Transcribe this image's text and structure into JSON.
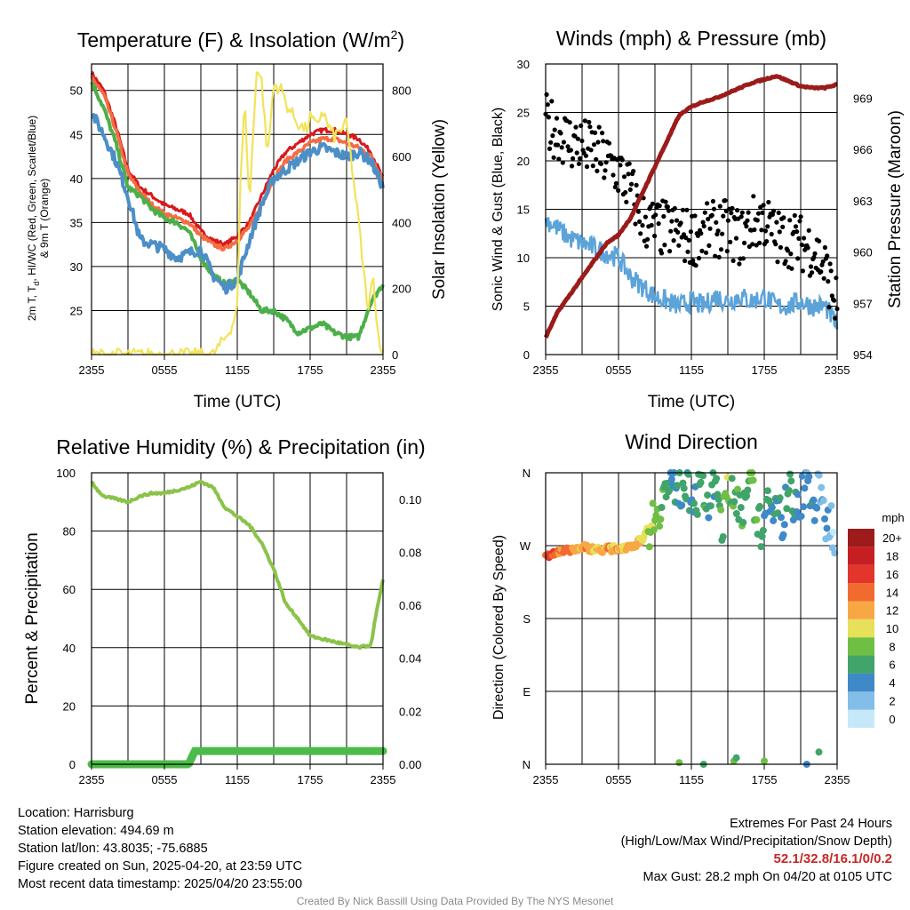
{
  "chart_data": [
    {
      "type": "line",
      "title": "Temperature (F) & Insolation (W/m²)",
      "xlabel": "Time (UTC)",
      "ylabel": "2m T, Td, HI/WC (Red, Green, Scarlet/Blue) & 9m T (Orange)",
      "ylabel_parts": [
        "2m T, T",
        "d",
        ", HI/WC (Red, Green, Scarlet/Blue)",
        "& 9m T (Orange)"
      ],
      "y2label": "Solar Insolation (Yellow)",
      "x_ticks": [
        "2355",
        "0555",
        "1155",
        "1755",
        "2355"
      ],
      "x_range": [
        0,
        24
      ],
      "ylim": [
        20,
        53
      ],
      "y_ticks": [
        25,
        30,
        35,
        40,
        45,
        50
      ],
      "y2lim": [
        0,
        880
      ],
      "y2_ticks": [
        0,
        200,
        400,
        600,
        800
      ],
      "series": [
        {
          "color": "#d7191c",
          "axis": "left",
          "x": [
            0,
            1,
            2,
            3,
            4,
            5,
            6,
            7,
            8,
            9,
            10,
            11,
            12,
            13,
            14,
            15,
            16,
            17,
            18,
            19,
            20,
            21,
            22,
            23,
            24
          ],
          "values": [
            52,
            50,
            46,
            41,
            39,
            38,
            37,
            36.5,
            36,
            34,
            33,
            32.5,
            33.5,
            35,
            38,
            41,
            43,
            44,
            45,
            45.5,
            45.5,
            45,
            44.5,
            43,
            40
          ]
        },
        {
          "color": "#f46d43",
          "axis": "left",
          "x": [
            0,
            1,
            2,
            3,
            4,
            5,
            6,
            7,
            8,
            9,
            10,
            11,
            12,
            13,
            14,
            15,
            16,
            17,
            18,
            19,
            20,
            21,
            22,
            23,
            24
          ],
          "values": [
            51.5,
            49.5,
            45.5,
            40.5,
            38.5,
            37,
            36,
            35.5,
            35,
            33.5,
            32.5,
            32,
            33,
            34.5,
            37,
            40,
            42,
            43,
            44,
            44.5,
            44.5,
            44,
            43.5,
            42.5,
            40
          ]
        },
        {
          "color": "#4daf4a",
          "axis": "left",
          "x": [
            0,
            1,
            2,
            3,
            4,
            5,
            6,
            7,
            8,
            9,
            10,
            11,
            12,
            13,
            14,
            15,
            16,
            17,
            18,
            19,
            20,
            21,
            22,
            23,
            24
          ],
          "values": [
            51,
            48,
            44,
            39,
            38,
            36.5,
            35.5,
            35,
            34,
            31,
            29,
            28,
            28.5,
            27,
            25,
            25,
            24,
            22.5,
            23,
            23.5,
            22.5,
            22,
            22,
            26,
            28
          ]
        },
        {
          "color": "#4c8fc7",
          "axis": "left",
          "x": [
            0,
            1,
            2,
            3,
            4,
            5,
            6,
            7,
            8,
            9,
            10,
            11,
            12,
            13,
            14,
            15,
            16,
            17,
            18,
            19,
            20,
            21,
            22,
            23,
            24
          ],
          "values": [
            47.5,
            45,
            42,
            38,
            33,
            32.5,
            32,
            31,
            31.5,
            32,
            29,
            27.5,
            28.5,
            33,
            37,
            40,
            41,
            42,
            43,
            43.5,
            43,
            42.5,
            43,
            42,
            39
          ]
        },
        {
          "color": "#f2e35a",
          "axis": "right",
          "x": [
            0,
            8,
            9,
            10,
            11,
            11.6,
            12,
            12.3,
            12.6,
            13,
            13.6,
            14,
            14.5,
            15,
            15.7,
            16,
            16.5,
            17,
            17.3,
            17.7,
            18,
            18.5,
            19,
            19.5,
            20,
            21,
            21.5,
            22,
            22.4,
            22.8,
            23.2,
            23.5,
            24
          ],
          "values": [
            0,
            0,
            0,
            0,
            50,
            90,
            150,
            560,
            780,
            450,
            870,
            830,
            600,
            820,
            800,
            760,
            730,
            700,
            690,
            680,
            720,
            690,
            740,
            690,
            660,
            700,
            550,
            400,
            250,
            130,
            250,
            80,
            0
          ]
        }
      ]
    },
    {
      "type": "scatter",
      "title": "Winds (mph) & Pressure (mb)",
      "xlabel": "Time (UTC)",
      "ylabel": "Sonic Wind & Gust (Blue, Black)",
      "y2label": "Station Pressure (Maroon)",
      "x_ticks": [
        "2355",
        "0555",
        "1155",
        "1755",
        "2355"
      ],
      "x_range": [
        0,
        24
      ],
      "ylim": [
        0,
        30
      ],
      "y_ticks": [
        0,
        5,
        10,
        15,
        20,
        25,
        30
      ],
      "y2lim": [
        954,
        971
      ],
      "y2_ticks": [
        954,
        957,
        960,
        963,
        966,
        969
      ],
      "series": [
        {
          "color": "#5ba3d9",
          "type": "line",
          "axis": "left",
          "x": [
            0,
            1,
            2,
            3,
            4,
            5,
            6,
            7,
            8,
            9,
            10,
            11,
            12,
            13,
            14,
            15,
            16,
            17,
            18,
            19,
            20,
            21,
            22,
            23,
            24
          ],
          "values": [
            14,
            13,
            12,
            11.5,
            11,
            10.5,
            10,
            8,
            7,
            6,
            5.5,
            5,
            5.5,
            5,
            6,
            5.5,
            6,
            5.5,
            6,
            5,
            5,
            5.5,
            5,
            5,
            3
          ]
        },
        {
          "color": "#000000",
          "type": "scatter",
          "axis": "left",
          "x": [
            0,
            1,
            2,
            3,
            4,
            5,
            6,
            7,
            8,
            9,
            10,
            11,
            12,
            13,
            14,
            15,
            16,
            17,
            18,
            19,
            20,
            21,
            22,
            23,
            24
          ],
          "values": [
            24,
            23,
            22,
            21.5,
            21,
            20,
            19,
            17,
            14,
            13,
            13,
            12.5,
            12,
            12.5,
            13,
            13,
            12,
            13.5,
            14,
            12,
            12,
            11.5,
            11,
            9,
            5
          ]
        },
        {
          "color": "#9b1b1b",
          "type": "line",
          "axis": "right",
          "x": [
            0,
            1,
            2,
            3,
            4,
            5,
            6,
            7,
            8,
            9,
            10,
            11,
            12,
            13,
            14,
            15,
            16,
            17,
            18,
            19,
            20,
            21,
            22,
            23,
            24
          ],
          "values": [
            955,
            956.5,
            957.5,
            958.5,
            959.5,
            960.5,
            961,
            962,
            963.5,
            965,
            966.5,
            968,
            968.5,
            968.8,
            969,
            969.3,
            969.6,
            969.9,
            970.1,
            970.3,
            970.0,
            969.7,
            969.6,
            969.6,
            969.8
          ]
        }
      ]
    },
    {
      "type": "line",
      "title": "Relative Humidity (%) & Precipitation (in)",
      "xlabel": "",
      "ylabel": "Percent & Precipitation",
      "x_ticks": [
        "2355",
        "0555",
        "1155",
        "1755",
        "2355"
      ],
      "x_range": [
        0,
        24
      ],
      "ylim": [
        0,
        100
      ],
      "y_ticks": [
        0,
        20,
        40,
        60,
        80,
        100
      ],
      "y2lim": [
        0,
        0.11
      ],
      "y2_ticks": [
        "0.00",
        "0.02",
        "0.04",
        "0.06",
        "0.08",
        "0.10"
      ],
      "series": [
        {
          "color": "#8bc34a",
          "axis": "left",
          "x": [
            0,
            0.5,
            1,
            2,
            3,
            4,
            5,
            6,
            7,
            8,
            9,
            10,
            11,
            12,
            13,
            14,
            15,
            16,
            17,
            18,
            19,
            20,
            21,
            22,
            23,
            23.5,
            24
          ],
          "values": [
            97,
            94,
            92,
            91,
            90,
            92,
            93,
            93,
            94,
            95,
            97,
            95,
            88,
            85,
            82,
            76,
            67,
            55,
            50,
            44,
            43,
            42,
            41,
            40,
            41,
            53,
            63
          ]
        },
        {
          "color": "#4dbb4a",
          "axis": "right",
          "x": [
            0,
            8,
            8.5,
            9,
            24
          ],
          "values": [
            0,
            0,
            0.005,
            0.005,
            0.005
          ]
        }
      ]
    },
    {
      "type": "scatter",
      "title": "Wind Direction",
      "ylabel": "Direction (Colored By Speed)",
      "x_ticks": [
        "2355",
        "0555",
        "1155",
        "1755",
        "2355"
      ],
      "x_range": [
        0,
        24
      ],
      "y_ticks": [
        "N",
        "E",
        "S",
        "W",
        "N"
      ],
      "ylim": [
        0,
        360
      ],
      "colorbar_title": "mph",
      "colorbar_labels": [
        "0",
        "2",
        "4",
        "6",
        "8",
        "10",
        "12",
        "14",
        "16",
        "18",
        "20+"
      ],
      "colorbar_colors": [
        "#c6e9fa",
        "#82bee8",
        "#3f89c8",
        "#41a46b",
        "#6fbf44",
        "#e7e05a",
        "#f8a745",
        "#f16a2f",
        "#e2352b",
        "#c61f22",
        "#9d1b1b"
      ],
      "points_x": [
        0,
        0.5,
        1,
        1.5,
        2,
        2.5,
        3,
        3.5,
        4,
        4.5,
        5,
        5.5,
        6,
        6.5,
        7,
        7.5,
        8,
        8.5,
        9,
        9.5,
        10,
        10.5,
        11,
        11.5,
        12,
        12.5,
        13,
        13.5,
        14,
        14.5,
        15,
        15.5,
        16,
        16.5,
        17,
        17.5,
        18,
        18.5,
        19,
        19.5,
        20,
        20.5,
        21,
        21.5,
        22,
        22.5,
        23,
        23.5,
        24,
        11,
        13,
        15.5,
        15.7,
        18,
        21.5,
        22.5
      ],
      "points_y": [
        260,
        258,
        262,
        265,
        265,
        266,
        268,
        267,
        266,
        265,
        266,
        266,
        267,
        268,
        270,
        272,
        280,
        292,
        310,
        325,
        340,
        342,
        343,
        345,
        338,
        330,
        335,
        320,
        345,
        300,
        330,
        340,
        325,
        310,
        350,
        290,
        300,
        320,
        335,
        300,
        345,
        310,
        330,
        355,
        320,
        335,
        300,
        300,
        270,
        2,
        0,
        4,
        8,
        4,
        0,
        15
      ],
      "points_speed": [
        15,
        16,
        14,
        13,
        13,
        12,
        12,
        12,
        11,
        11,
        12,
        12,
        12,
        11,
        11,
        11,
        10,
        9,
        8,
        7,
        6,
        4,
        5,
        6,
        4,
        6,
        7,
        5,
        6,
        7,
        8,
        6,
        7,
        6,
        8,
        7,
        6,
        5,
        6,
        4,
        6,
        5,
        4,
        3,
        5,
        2,
        3,
        2,
        2,
        8,
        6,
        7,
        6,
        7,
        4,
        6
      ]
    }
  ],
  "info_left": [
    "Location: Harrisburg",
    "Station elevation: 494.69 m",
    "Station lat/lon: 43.8035; -75.6885",
    "Figure created on Sun, 2025-04-20, at 23:59 UTC",
    "Most recent data timestamp: 2025/04/20 23:55:00"
  ],
  "extremes": {
    "title": "Extremes For Past 24 Hours",
    "subtitle": "(High/Low/Max Wind/Precipitation/Snow Depth)",
    "values": "52.1/32.8/16.1/0/0.2",
    "gust": "Max Gust: 28.2 mph On 04/20 at 0105 UTC"
  },
  "credit": "Created By Nick Bassill Using Data Provided By The NYS Mesonet"
}
